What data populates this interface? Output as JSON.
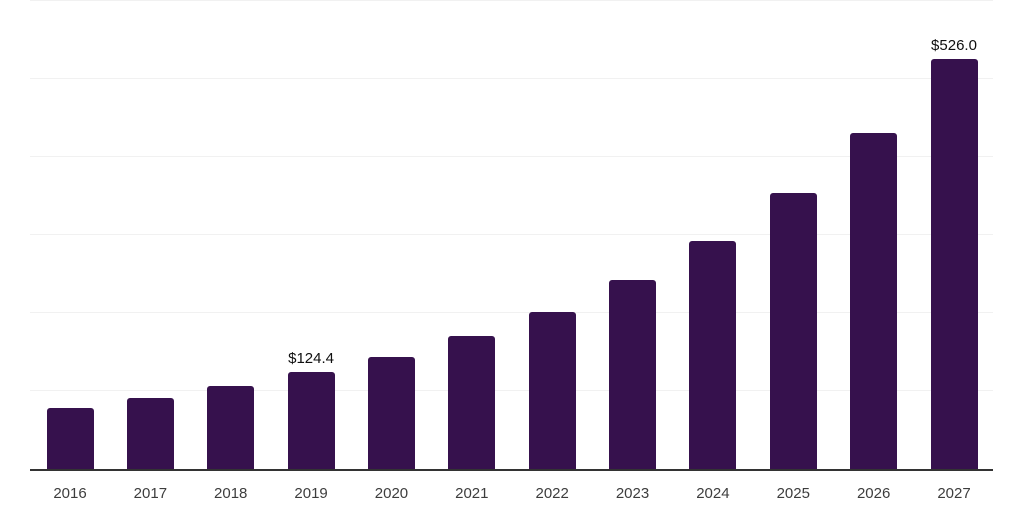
{
  "chart_data": {
    "type": "bar",
    "title": "",
    "xlabel": "",
    "ylabel": "",
    "categories": [
      "2016",
      "2017",
      "2018",
      "2019",
      "2020",
      "2021",
      "2022",
      "2023",
      "2024",
      "2025",
      "2026",
      "2027"
    ],
    "values": [
      78.7,
      91.5,
      106.6,
      124.4,
      144.0,
      170.4,
      201.7,
      241.8,
      291.8,
      354.2,
      431.1,
      526.0
    ],
    "data_labels": [
      {
        "category": "2019",
        "text": "$124.4"
      },
      {
        "category": "2027",
        "text": "$526.0"
      }
    ],
    "ylim": [
      0,
      600
    ],
    "gridline_step": 100,
    "grid": "horizontal-only",
    "y_axis_labels_visible": false,
    "legend": "none",
    "colors": {
      "bar": "#36114d",
      "axis_line": "#333333",
      "gridline": "#f1f1f1",
      "tick_label": "#3d3d3d",
      "data_label": "#0f0f0f",
      "background": "#ffffff"
    }
  }
}
